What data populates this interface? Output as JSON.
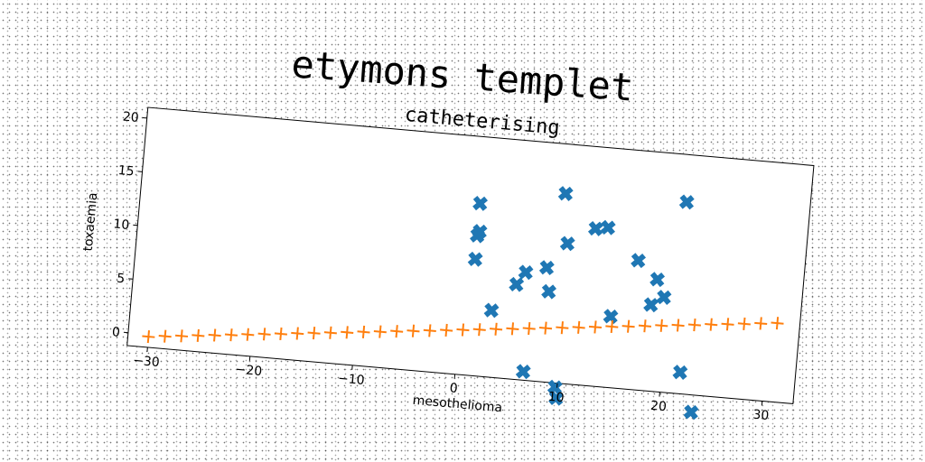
{
  "title": "etymons templet",
  "chart_data": {
    "type": "scatter",
    "title": "catheterising",
    "xlabel": "mesothelioma",
    "ylabel": "toxaemia",
    "xlim": [
      -32,
      33
    ],
    "ylim": [
      -1.2,
      21
    ],
    "xticks": [
      -30,
      -20,
      -10,
      0,
      10,
      20,
      30
    ],
    "yticks": [
      0,
      5,
      10,
      15,
      20
    ],
    "grid": false,
    "legend": "none",
    "series": [
      {
        "color": "#1f77b4",
        "marker": "X",
        "points": [
          [
            1.0,
            14.8
          ],
          [
            1.2,
            12.2
          ],
          [
            1.0,
            11.8
          ],
          [
            1.0,
            9.6
          ],
          [
            3.0,
            5.0
          ],
          [
            5.2,
            7.6
          ],
          [
            6.0,
            8.8
          ],
          [
            8.0,
            9.4
          ],
          [
            8.4,
            7.2
          ],
          [
            6.6,
            -0.4
          ],
          [
            9.8,
            -1.6
          ],
          [
            10.0,
            -2.6
          ],
          [
            9.2,
            16.4
          ],
          [
            9.8,
            11.8
          ],
          [
            12.4,
            13.4
          ],
          [
            13.6,
            13.6
          ],
          [
            14.6,
            5.4
          ],
          [
            16.8,
            10.8
          ],
          [
            18.4,
            6.8
          ],
          [
            18.8,
            9.2
          ],
          [
            19.6,
            7.6
          ],
          [
            21.0,
            16.6
          ],
          [
            21.8,
            0.8
          ],
          [
            23.2,
            -2.8
          ]
        ]
      },
      {
        "color": "#ff7f0e",
        "marker": "+",
        "points": [
          [
            -30,
            -0.2
          ],
          [
            -28.4,
            -0.03
          ],
          [
            -26.8,
            0.13
          ],
          [
            -25.2,
            0.3
          ],
          [
            -23.6,
            0.47
          ],
          [
            -22,
            0.63
          ],
          [
            -20.4,
            0.8
          ],
          [
            -18.8,
            0.97
          ],
          [
            -17.2,
            1.13
          ],
          [
            -15.6,
            1.3
          ],
          [
            -14,
            1.47
          ],
          [
            -12.4,
            1.63
          ],
          [
            -10.8,
            1.8
          ],
          [
            -9.2,
            1.97
          ],
          [
            -7.6,
            2.13
          ],
          [
            -6,
            2.3
          ],
          [
            -4.4,
            2.47
          ],
          [
            -2.8,
            2.63
          ],
          [
            -1.2,
            2.8
          ],
          [
            0.4,
            2.97
          ],
          [
            2,
            3.13
          ],
          [
            3.6,
            3.3
          ],
          [
            5.2,
            3.47
          ],
          [
            6.8,
            3.63
          ],
          [
            8.4,
            3.8
          ],
          [
            10,
            3.97
          ],
          [
            11.6,
            4.13
          ],
          [
            13.2,
            4.3
          ],
          [
            14.8,
            4.47
          ],
          [
            16.4,
            4.63
          ],
          [
            18,
            4.8
          ],
          [
            19.6,
            4.97
          ],
          [
            21.2,
            5.13
          ],
          [
            22.8,
            5.3
          ],
          [
            24.4,
            5.47
          ],
          [
            26,
            5.63
          ],
          [
            27.6,
            5.8
          ],
          [
            29.2,
            5.97
          ],
          [
            30.8,
            6.13
          ]
        ]
      }
    ]
  }
}
